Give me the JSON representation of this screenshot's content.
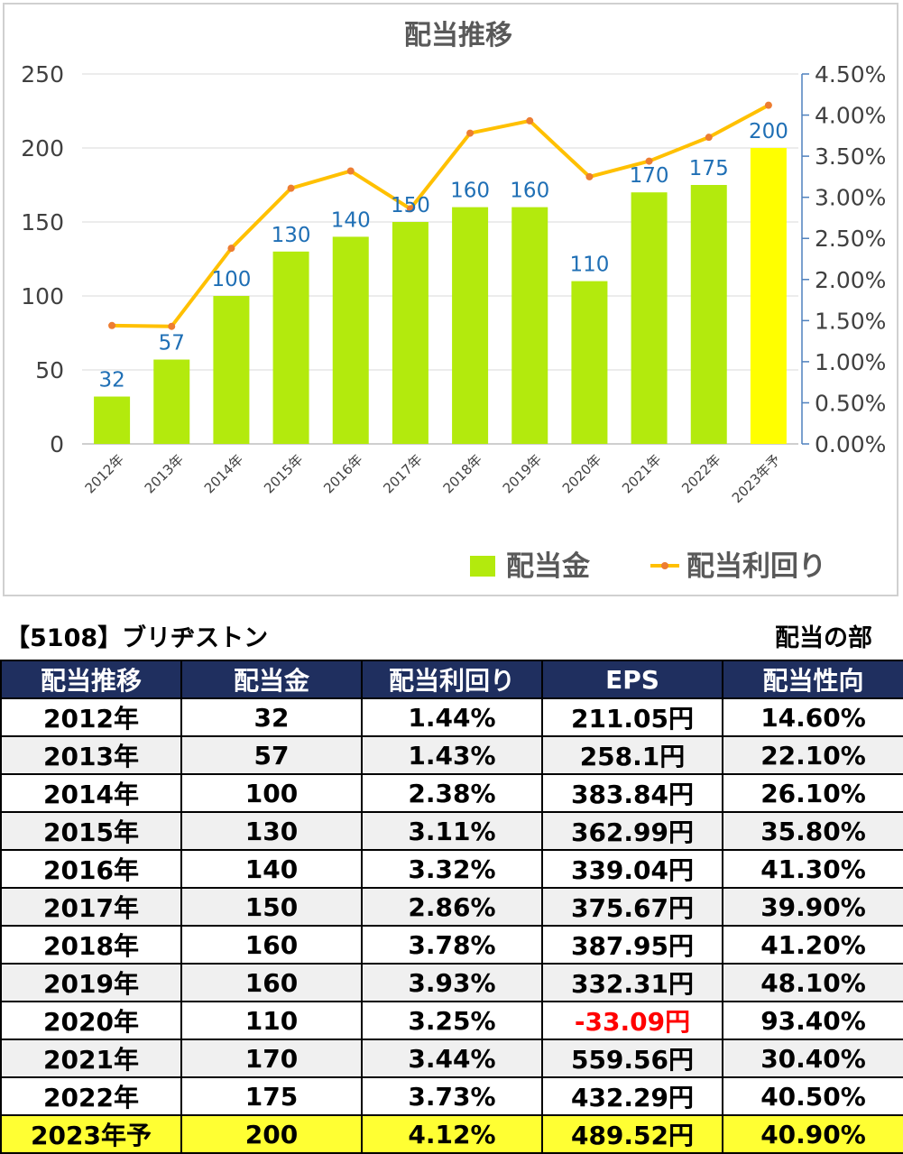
{
  "chart_data": {
    "type": "bar+line",
    "title": "配当推移",
    "categories": [
      "2012年",
      "2013年",
      "2014年",
      "2015年",
      "2016年",
      "2017年",
      "2018年",
      "2019年",
      "2020年",
      "2021年",
      "2022年",
      "2023年予"
    ],
    "series": [
      {
        "name": "配当金",
        "type": "bar",
        "axis": "left",
        "values": [
          32,
          57,
          100,
          130,
          140,
          150,
          160,
          160,
          110,
          170,
          175,
          200
        ],
        "color": "#b3ea0d",
        "highlight_color": "#ffff00",
        "highlight_index": 11
      },
      {
        "name": "配当利回り",
        "type": "line",
        "axis": "right",
        "values": [
          1.44,
          1.43,
          2.38,
          3.11,
          3.32,
          2.86,
          3.78,
          3.93,
          3.25,
          3.44,
          3.73,
          4.12
        ],
        "color": "#ffc000",
        "marker_color": "#ed7d31"
      }
    ],
    "y_left": {
      "min": 0,
      "max": 250,
      "ticks": [
        "0",
        "50",
        "100",
        "150",
        "200",
        "250"
      ]
    },
    "y_right": {
      "min": 0,
      "max": 4.5,
      "ticks": [
        "0.00%",
        "0.50%",
        "1.00%",
        "1.50%",
        "2.00%",
        "2.50%",
        "3.00%",
        "3.50%",
        "4.00%",
        "4.50%"
      ]
    },
    "data_labels": [
      "32",
      "57",
      "100",
      "130",
      "140",
      "150",
      "160",
      "160",
      "110",
      "170",
      "175",
      "200"
    ],
    "data_label_color": "#1f6fb5",
    "grid": true,
    "legend_position": "bottom-right"
  },
  "header": {
    "company": "【5108】ブリヂストン",
    "section": "配当の部"
  },
  "table": {
    "columns": [
      "配当推移",
      "配当金",
      "配当利回り",
      "EPS",
      "配当性向"
    ],
    "rows": [
      {
        "year": "2012年",
        "dividend": "32",
        "yield": "1.44%",
        "eps": "211.05円",
        "payout": "14.60%"
      },
      {
        "year": "2013年",
        "dividend": "57",
        "yield": "1.43%",
        "eps": "258.1円",
        "payout": "22.10%"
      },
      {
        "year": "2014年",
        "dividend": "100",
        "yield": "2.38%",
        "eps": "383.84円",
        "payout": "26.10%"
      },
      {
        "year": "2015年",
        "dividend": "130",
        "yield": "3.11%",
        "eps": "362.99円",
        "payout": "35.80%"
      },
      {
        "year": "2016年",
        "dividend": "140",
        "yield": "3.32%",
        "eps": "339.04円",
        "payout": "41.30%"
      },
      {
        "year": "2017年",
        "dividend": "150",
        "yield": "2.86%",
        "eps": "375.67円",
        "payout": "39.90%"
      },
      {
        "year": "2018年",
        "dividend": "160",
        "yield": "3.78%",
        "eps": "387.95円",
        "payout": "41.20%"
      },
      {
        "year": "2019年",
        "dividend": "160",
        "yield": "3.93%",
        "eps": "332.31円",
        "payout": "48.10%"
      },
      {
        "year": "2020年",
        "dividend": "110",
        "yield": "3.25%",
        "eps": "-33.09円",
        "payout": "93.40%"
      },
      {
        "year": "2021年",
        "dividend": "170",
        "yield": "3.44%",
        "eps": "559.56円",
        "payout": "30.40%"
      },
      {
        "year": "2022年",
        "dividend": "175",
        "yield": "3.73%",
        "eps": "432.29円",
        "payout": "40.50%"
      },
      {
        "year": "2023年予",
        "dividend": "200",
        "yield": "4.12%",
        "eps": "489.52円",
        "payout": "40.90%"
      }
    ]
  }
}
